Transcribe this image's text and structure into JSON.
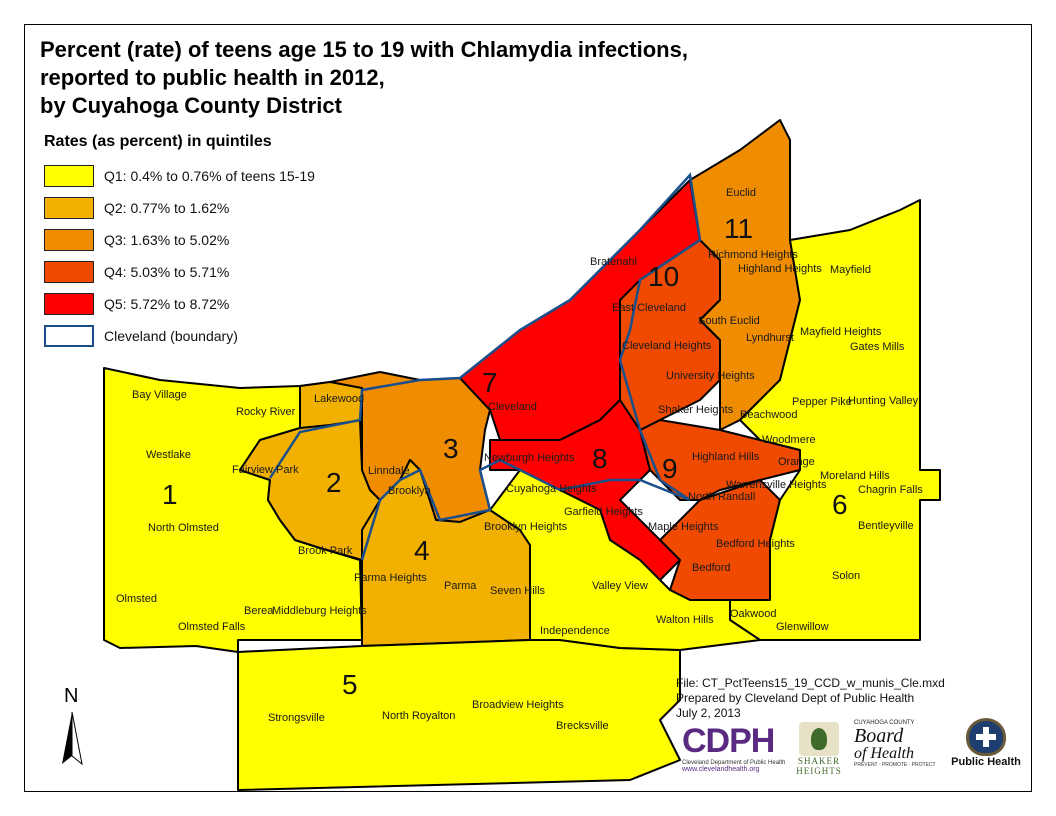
{
  "title_lines": [
    "Percent (rate) of teens age 15 to 19 with Chlamydia infections,",
    "reported to public health in 2012,",
    "by Cuyahoga County District"
  ],
  "legend": {
    "heading": "Rates (as percent) in quintiles",
    "items": [
      {
        "label": "Q1: 0.4% to 0.76% of teens 15-19",
        "color": "#ffff00"
      },
      {
        "label": "Q2: 0.77% to 1.62%",
        "color": "#f2b100"
      },
      {
        "label": "Q3: 1.63% to 5.02%",
        "color": "#f08c00"
      },
      {
        "label": "Q4: 5.03% to 5.71%",
        "color": "#ef4a00"
      },
      {
        "label": "Q5: 5.72% to 8.72%",
        "color": "#ff0000"
      },
      {
        "label": "Cleveland (boundary)",
        "color": "#ffffff",
        "border": "#1a4f8c"
      }
    ]
  },
  "districts": [
    "1",
    "2",
    "3",
    "4",
    "5",
    "6",
    "7",
    "8",
    "9",
    "10",
    "11"
  ],
  "municipalities": [
    "Bay Village",
    "Rocky River",
    "Lakewood",
    "Westlake",
    "Fairview Park",
    "Linndale",
    "Brooklyn",
    "North Olmsted",
    "Brook Park",
    "Cleveland",
    "Newburgh Heights",
    "Cuyahoga Heights",
    "Garfield Heights",
    "Brooklyn Heights",
    "Parma Heights",
    "Parma",
    "Seven Hills",
    "Olmsted",
    "Berea",
    "Middleburg Heights",
    "Olmsted Falls",
    "Strongsville",
    "North Royalton",
    "Broadview Heights",
    "Brecksville",
    "Independence",
    "Valley View",
    "Walton Hills",
    "Oakwood",
    "Glenwillow",
    "Bedford",
    "Bedford Heights",
    "Maple Heights",
    "North Randall",
    "Warrensville Heights",
    "Highland Hills",
    "Orange",
    "Woodmere",
    "Beachwood",
    "Shaker Heights",
    "University Heights",
    "Cleveland Heights",
    "East Cleveland",
    "Bratenahl",
    "Euclid",
    "Richmond Heights",
    "Highland Heights",
    "Mayfield",
    "South Euclid",
    "Lyndhurst",
    "Mayfield Heights",
    "Gates Mills",
    "Pepper Pike",
    "Hunting Valley",
    "Moreland Hills",
    "Chagrin Falls",
    "Bentleyville",
    "Solon"
  ],
  "north_label": "N",
  "notes": [
    "File: CT_PctTeens15_19_CCD_w_munis_Cle.mxd",
    "Prepared by Cleveland Dept of Public Health",
    "July 2, 2013"
  ],
  "logos": {
    "cdph": "CDPH",
    "cdph_sub": "Cleveland Department of Public Health",
    "cdph_url": "www.clevelandhealth.org",
    "shaker": "SHAKER",
    "shaker2": "HEIGHTS",
    "cuyahoga_top": "CUYAHOGA COUNTY",
    "board": "Board",
    "of": "of",
    "health": "Health",
    "board_tag": "PREVENT · PROMOTE · PROTECT",
    "ph": "Public Health"
  },
  "colors": {
    "q1": "#ffff00",
    "q2": "#f2b100",
    "q3": "#f08c00",
    "q4": "#ef4a00",
    "q5": "#ff0000",
    "cleveland_boundary": "#1a4f8c"
  }
}
